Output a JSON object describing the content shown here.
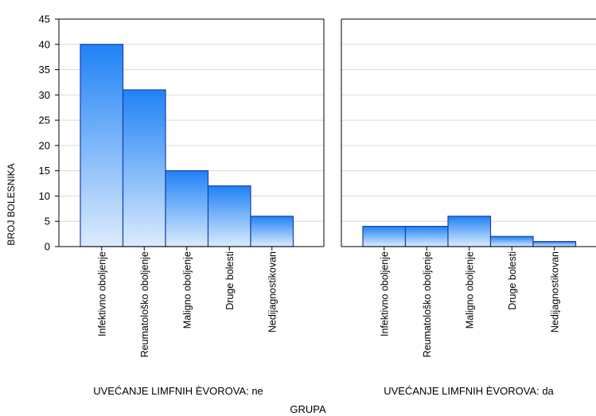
{
  "chart_data": {
    "type": "bar",
    "ylabel": "BROJ BOLESNIKA",
    "xlabel": "GRUPA",
    "ylim": [
      0,
      45
    ],
    "yticks": [
      0,
      5,
      10,
      15,
      20,
      25,
      30,
      35,
      40,
      45
    ],
    "grid": true,
    "categories": [
      "Infektivno oboljenje",
      "Reumatološko oboljenje",
      "Maligno oboljenje",
      "Druge bolesti",
      "Nedijagnostikovan"
    ],
    "panels": [
      {
        "label": "UVEĆANJE  LIMFNIH ÈVOROVA: ne",
        "values": [
          40,
          31,
          15,
          12,
          6
        ]
      },
      {
        "label": "UVEĆANJE  LIMFNIH ÈVOROVA: da",
        "values": [
          4,
          4,
          6,
          2,
          1
        ]
      }
    ],
    "colors": {
      "bar_top": "#1f82f5",
      "bar_bottom": "#dcecfc",
      "bar_stroke": "#1a3fae",
      "grid": "#d9d9d9",
      "axis": "#000000"
    }
  }
}
